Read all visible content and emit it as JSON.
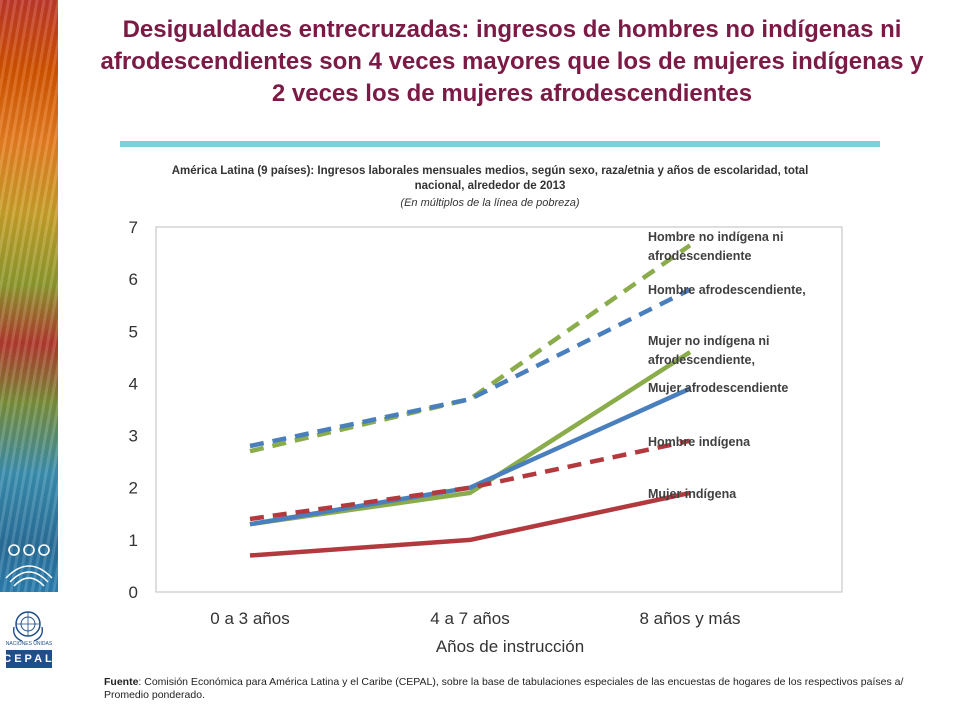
{
  "title": "Desigualdades entrecruzadas: ingresos de hombres no indígenas ni afrodescendientes son 4 veces mayores que los de mujeres indígenas y 2 veces los de mujeres afrodescendientes",
  "subtitle": "América Latina (9 países): Ingresos laborales mensuales medios, según sexo, raza/etnia y años de escolaridad, total nacional, alrededor de 2013",
  "units_note": "(En múltiplos de la línea de pobreza)",
  "source": {
    "label": "Fuente",
    "text": ": Comisión Económica para América Latina y el Caribe (CEPAL), sobre la base de tabulaciones especiales de las encuestas de hogares de los respectivos países a/ Promedio ponderado."
  },
  "logos": {
    "un_caption": "NACIONES UNIDAS",
    "cepal": "CEPAL"
  },
  "colors": {
    "title": "#7b1a45",
    "green": "#8aac4a",
    "blue": "#4a7fbe",
    "red": "#b23a3e",
    "rule": "#7ed0d8"
  },
  "chart_data": {
    "type": "line",
    "categories": [
      "0 a 3 años",
      "4 a 7 años",
      "8 años y más"
    ],
    "xlabel": "Años de instrucción",
    "ylabel": "",
    "ylim": [
      0,
      7
    ],
    "yticks": [
      0,
      1,
      2,
      3,
      4,
      5,
      6,
      7
    ],
    "grid": false,
    "series": [
      {
        "name": "Hombre no indígena ni afrodescendiente",
        "values": [
          2.7,
          3.7,
          6.65
        ],
        "color": "#8aac4a",
        "dashed": true
      },
      {
        "name": "Hombre afrodescendiente,",
        "values": [
          2.8,
          3.7,
          5.8
        ],
        "color": "#4a7fbe",
        "dashed": true
      },
      {
        "name": "Mujer no indígena ni afrodescendiente,",
        "values": [
          1.3,
          1.9,
          4.6
        ],
        "color": "#8aac4a",
        "dashed": false
      },
      {
        "name": "Mujer afrodescendiente",
        "values": [
          1.3,
          2.0,
          3.9
        ],
        "color": "#4a7fbe",
        "dashed": false
      },
      {
        "name": "Hombre indígena",
        "values": [
          1.4,
          2.0,
          2.9
        ],
        "color": "#b23a3e",
        "dashed": true
      },
      {
        "name": "Mujer indígena",
        "values": [
          0.7,
          1.0,
          1.9
        ],
        "color": "#b23a3e",
        "dashed": false
      }
    ]
  }
}
